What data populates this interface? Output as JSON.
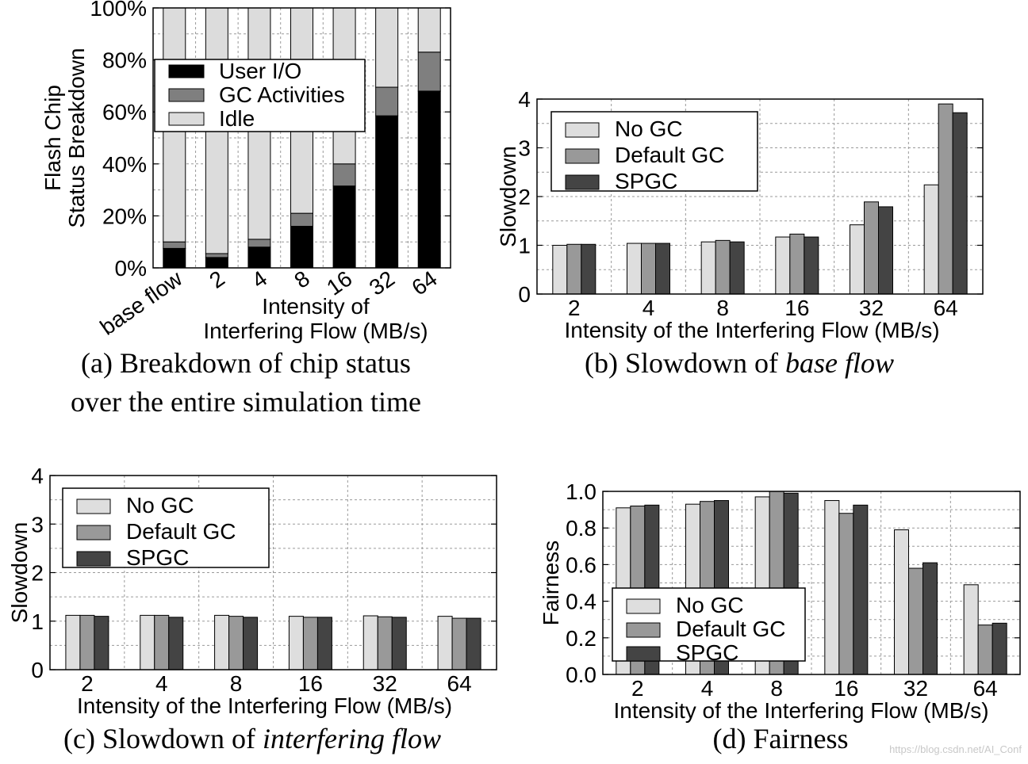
{
  "colors": {
    "user_io": "#000000",
    "gc_activities": "#7f7f7f",
    "idle": "#dcdcdc",
    "no_gc": "#dedede",
    "default_gc": "#999999",
    "spgc": "#444444"
  },
  "watermark": "https://blog.csdn.net/AI_Conf",
  "chart_data": [
    {
      "id": "a",
      "type": "bar",
      "stacked": true,
      "title": "",
      "caption_line1": "(a) Breakdown of chip status",
      "caption_line2": "over the entire simulation time",
      "xlabel_line1": "Intensity of",
      "xlabel_line2": "Interfering Flow (MB/s)",
      "ylabel_line1": "Flash Chip",
      "ylabel_line2": "Status Breakdown",
      "categories": [
        "base flow",
        "2",
        "4",
        "8",
        "16",
        "32",
        "64"
      ],
      "ylim": [
        0,
        100
      ],
      "yticks": [
        "0%",
        "20%",
        "40%",
        "60%",
        "80%",
        "100%"
      ],
      "grid": true,
      "legend_position": "top-left",
      "series": [
        {
          "name": "User I/O",
          "values": [
            7.5,
            4,
            8,
            16,
            31.5,
            58.5,
            68
          ]
        },
        {
          "name": "GC Activities",
          "values": [
            2.5,
            1.5,
            3,
            5,
            8.5,
            11,
            15
          ]
        },
        {
          "name": "Idle",
          "values": [
            90,
            94.5,
            89,
            79,
            60,
            30.5,
            17
          ]
        }
      ]
    },
    {
      "id": "b",
      "type": "bar",
      "caption_prefix": "(b) Slowdown of ",
      "caption_emph": "base flow",
      "xlabel": "Intensity of the Interfering Flow (MB/s)",
      "ylabel": "Slowdown",
      "categories": [
        "2",
        "4",
        "8",
        "16",
        "32",
        "64"
      ],
      "ylim": [
        0,
        4
      ],
      "yticks": [
        "0",
        "1",
        "2",
        "3",
        "4"
      ],
      "grid": true,
      "legend_position": "top-left",
      "series": [
        {
          "name": "No GC",
          "values": [
            1.0,
            1.04,
            1.07,
            1.17,
            1.42,
            2.24
          ]
        },
        {
          "name": "Default GC",
          "values": [
            1.02,
            1.04,
            1.1,
            1.23,
            1.89,
            3.9
          ]
        },
        {
          "name": "SPGC",
          "values": [
            1.02,
            1.04,
            1.07,
            1.17,
            1.79,
            3.72
          ]
        }
      ]
    },
    {
      "id": "c",
      "type": "bar",
      "caption_prefix": "(c) Slowdown of ",
      "caption_emph": "interfering flow",
      "xlabel": "Intensity of the Interfering Flow (MB/s)",
      "ylabel": "Slowdown",
      "categories": [
        "2",
        "4",
        "8",
        "16",
        "32",
        "64"
      ],
      "ylim": [
        0,
        4
      ],
      "yticks": [
        "0",
        "1",
        "2",
        "3",
        "4"
      ],
      "grid": true,
      "legend_position": "top-left",
      "series": [
        {
          "name": "No GC",
          "values": [
            1.12,
            1.12,
            1.12,
            1.1,
            1.11,
            1.1
          ]
        },
        {
          "name": "Default GC",
          "values": [
            1.12,
            1.12,
            1.1,
            1.08,
            1.09,
            1.06
          ]
        },
        {
          "name": "SPGC",
          "values": [
            1.1,
            1.08,
            1.08,
            1.08,
            1.08,
            1.06
          ]
        }
      ]
    },
    {
      "id": "d",
      "type": "bar",
      "caption": "(d) Fairness",
      "xlabel": "Intensity of the Interfering Flow (MB/s)",
      "ylabel": "Fairness",
      "categories": [
        "2",
        "4",
        "8",
        "16",
        "32",
        "64"
      ],
      "ylim": [
        0,
        1.0
      ],
      "yticks": [
        "0.0",
        "0.2",
        "0.4",
        "0.6",
        "0.8",
        "1.0"
      ],
      "grid": true,
      "legend_position": "bottom-left",
      "series": [
        {
          "name": "No GC",
          "values": [
            0.91,
            0.93,
            0.97,
            0.95,
            0.79,
            0.49
          ]
        },
        {
          "name": "Default GC",
          "values": [
            0.92,
            0.945,
            1.0,
            0.88,
            0.58,
            0.27
          ]
        },
        {
          "name": "SPGC",
          "values": [
            0.925,
            0.95,
            0.99,
            0.925,
            0.61,
            0.28
          ]
        }
      ]
    }
  ]
}
